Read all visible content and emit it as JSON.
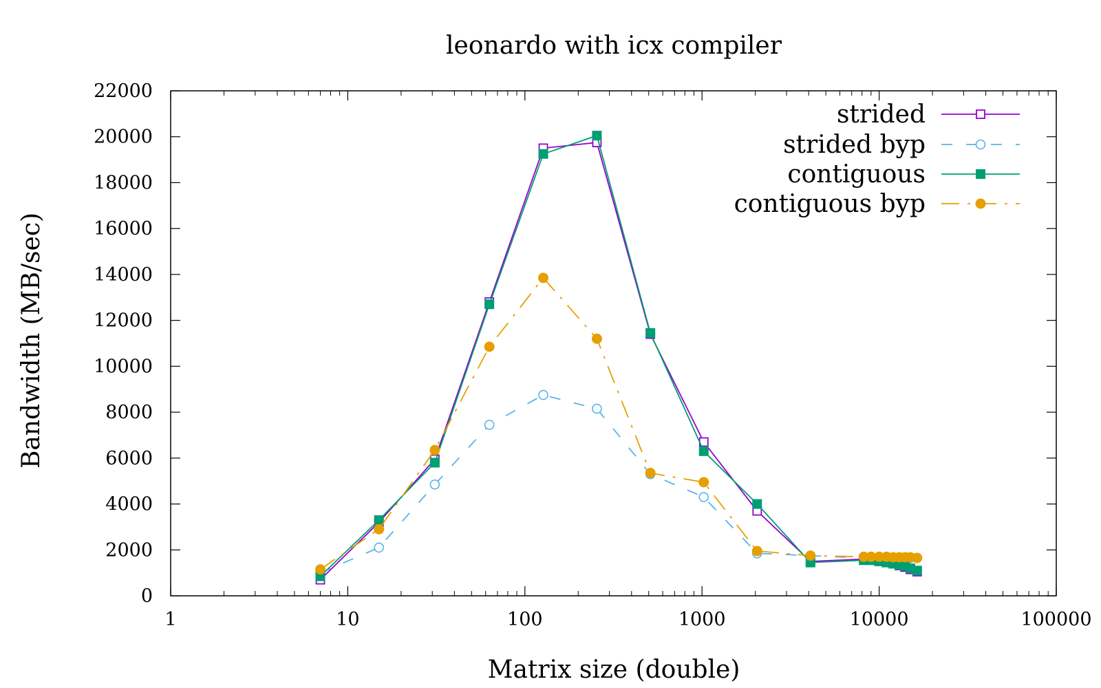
{
  "chart_data": {
    "type": "line",
    "title": "leonardo with icx compiler",
    "xlabel": "Matrix size (double)",
    "ylabel": "Bandwidth (MB/sec)",
    "x_scale": "log",
    "xlim": [
      1,
      100000
    ],
    "ylim": [
      0,
      22000
    ],
    "x_ticks": [
      "1",
      "10",
      "100",
      "1000",
      "10000",
      "100000"
    ],
    "x_tick_values": [
      1,
      10,
      100,
      1000,
      10000,
      100000
    ],
    "y_ticks": [
      "0",
      "2000",
      "4000",
      "6000",
      "8000",
      "10000",
      "12000",
      "14000",
      "16000",
      "18000",
      "20000",
      "22000"
    ],
    "y_tick_values": [
      0,
      2000,
      4000,
      6000,
      8000,
      10000,
      12000,
      14000,
      16000,
      18000,
      20000,
      22000
    ],
    "grid": false,
    "legend_position": "top-right",
    "series": [
      {
        "name": "strided",
        "color": "#9400d3",
        "line": "solid",
        "marker": "open-square",
        "x": [
          7,
          15,
          31,
          63,
          127,
          255,
          511,
          1023,
          2047,
          4095,
          8191,
          9000,
          10000,
          11000,
          12000,
          13000,
          14000,
          15000,
          16383
        ],
        "y": [
          700,
          3200,
          5950,
          12800,
          19500,
          19750,
          11400,
          6700,
          3700,
          1500,
          1600,
          1580,
          1550,
          1480,
          1400,
          1320,
          1250,
          1150,
          1050
        ]
      },
      {
        "name": "strided byp",
        "color": "#56b4e9",
        "line": "dashed",
        "marker": "open-circle",
        "x": [
          7,
          15,
          31,
          63,
          127,
          255,
          511,
          1023,
          2047,
          4095,
          8191,
          9000,
          10000,
          11000,
          12000,
          13000,
          14000,
          15000,
          16383
        ],
        "y": [
          1000,
          2100,
          4850,
          7450,
          8750,
          8150,
          5300,
          4300,
          1850,
          1750,
          1650,
          1650,
          1650,
          1650,
          1650,
          1650,
          1650,
          1650,
          1650
        ]
      },
      {
        "name": "contiguous",
        "color": "#009e73",
        "line": "solid",
        "marker": "filled-square",
        "x": [
          7,
          15,
          31,
          63,
          127,
          255,
          511,
          1023,
          2047,
          4095,
          8191,
          9000,
          10000,
          11000,
          12000,
          13000,
          14000,
          15000,
          16383
        ],
        "y": [
          850,
          3300,
          5800,
          12700,
          19250,
          20050,
          11450,
          6300,
          4000,
          1450,
          1550,
          1550,
          1500,
          1450,
          1400,
          1350,
          1300,
          1200,
          1100
        ]
      },
      {
        "name": "contiguous byp",
        "color": "#e69f00",
        "line": "dash-dot",
        "marker": "filled-circle",
        "x": [
          7,
          15,
          31,
          63,
          127,
          255,
          511,
          1023,
          2047,
          4095,
          8191,
          9000,
          10000,
          11000,
          12000,
          13000,
          14000,
          15000,
          16383
        ],
        "y": [
          1150,
          2900,
          6350,
          10850,
          13850,
          11200,
          5350,
          4950,
          1950,
          1750,
          1700,
          1700,
          1700,
          1700,
          1680,
          1680,
          1680,
          1680,
          1650
        ]
      }
    ]
  }
}
